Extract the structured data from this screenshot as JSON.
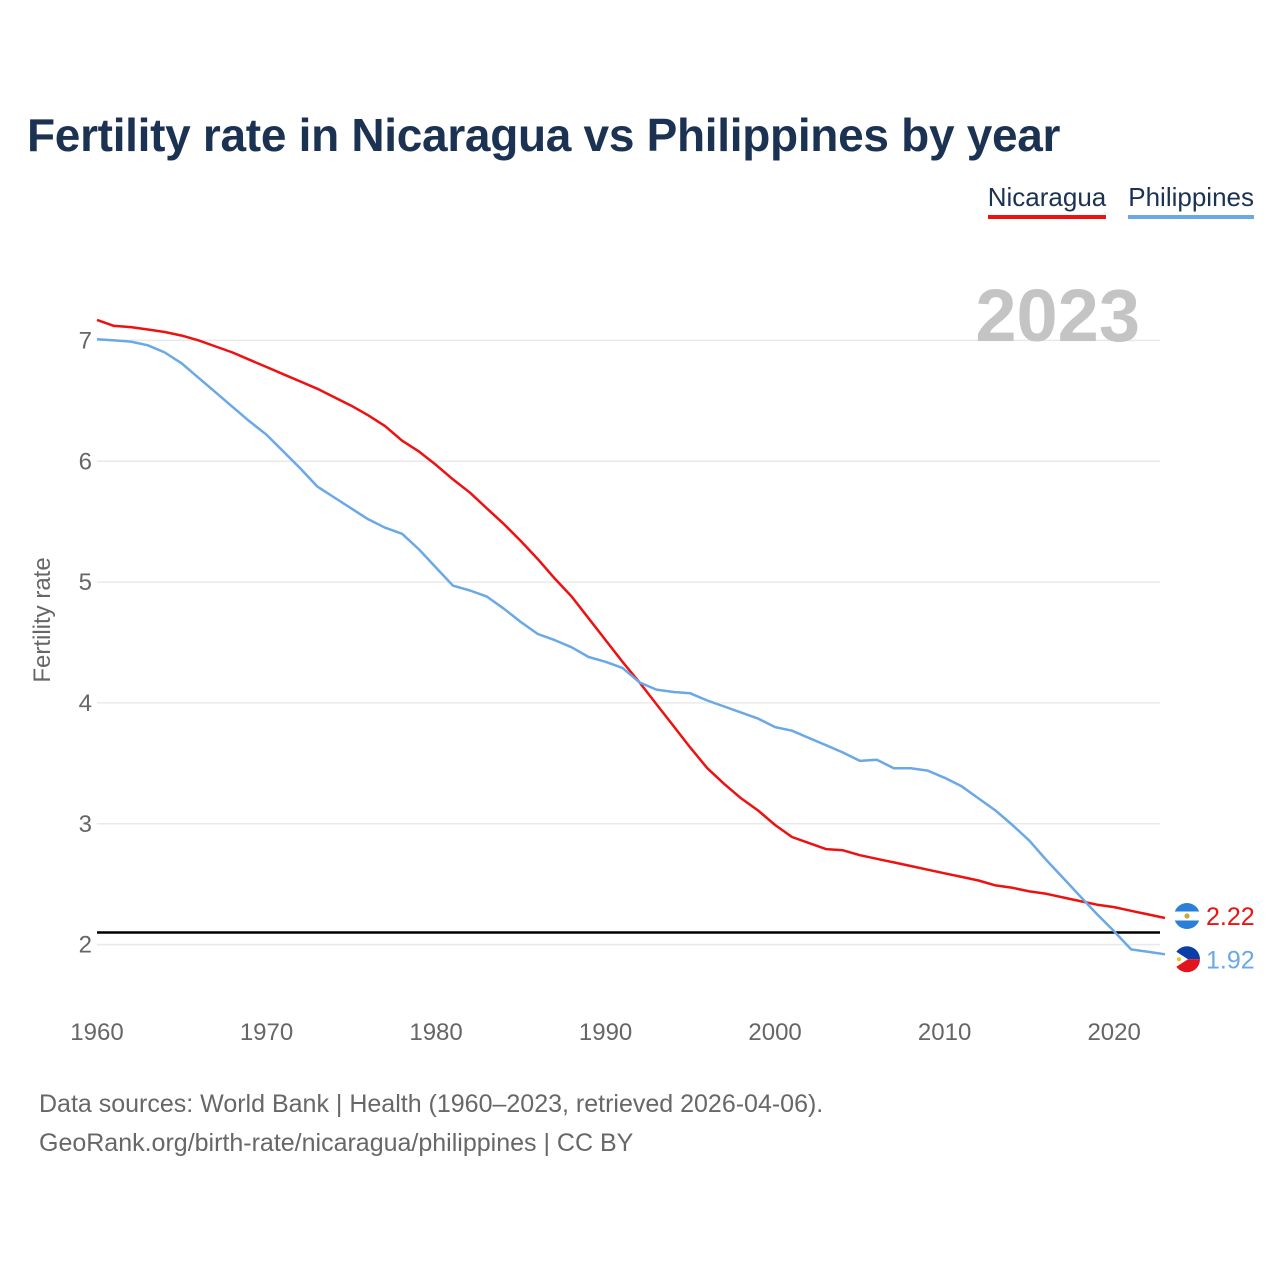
{
  "colors": {
    "nicaragua": "#ee1111",
    "philippines": "#6aa8e6",
    "title": "#1b3253",
    "axis_text": "#666666",
    "year_watermark": "#c4c4c4",
    "replacement_line": "#000000"
  },
  "legend": {
    "nicaragua": "Nicaragua",
    "philippines": "Philippines"
  },
  "footer": {
    "line1": "Data sources: World Bank | Health (1960–2023, retrieved 2026-04-06).",
    "line2": "GeoRank.org/birth-rate/nicaragua/philippines | CC BY"
  },
  "chart_data": {
    "type": "line",
    "title": "Fertility rate in Nicaragua vs Philippines by year",
    "xlabel": "",
    "ylabel": "Fertility rate",
    "year_label": "2023",
    "xlim": [
      1960,
      2023
    ],
    "ylim": [
      1.5,
      7.5
    ],
    "x_ticks": [
      1960,
      1970,
      1980,
      1990,
      2000,
      2010,
      2020
    ],
    "y_ticks": [
      2,
      3,
      4,
      5,
      6,
      7
    ],
    "reference_line": 2.1,
    "x": [
      1960,
      1961,
      1962,
      1963,
      1964,
      1965,
      1966,
      1967,
      1968,
      1969,
      1970,
      1971,
      1972,
      1973,
      1974,
      1975,
      1976,
      1977,
      1978,
      1979,
      1980,
      1981,
      1982,
      1983,
      1984,
      1985,
      1986,
      1987,
      1988,
      1989,
      1990,
      1991,
      1992,
      1993,
      1994,
      1995,
      1996,
      1997,
      1998,
      1999,
      2000,
      2001,
      2002,
      2003,
      2004,
      2005,
      2006,
      2007,
      2008,
      2009,
      2010,
      2011,
      2012,
      2013,
      2014,
      2015,
      2016,
      2017,
      2018,
      2019,
      2020,
      2021,
      2022,
      2023
    ],
    "series": [
      {
        "name": "Nicaragua",
        "end_label": "2.22",
        "values": [
          7.17,
          7.12,
          7.11,
          7.09,
          7.07,
          7.04,
          7.0,
          6.95,
          6.9,
          6.84,
          6.78,
          6.72,
          6.66,
          6.6,
          6.53,
          6.46,
          6.38,
          6.29,
          6.17,
          6.08,
          5.97,
          5.85,
          5.74,
          5.61,
          5.48,
          5.34,
          5.19,
          5.03,
          4.88,
          4.7,
          4.52,
          4.34,
          4.17,
          3.99,
          3.81,
          3.63,
          3.46,
          3.33,
          3.21,
          3.11,
          2.99,
          2.89,
          2.84,
          2.79,
          2.78,
          2.74,
          2.71,
          2.68,
          2.65,
          2.62,
          2.59,
          2.56,
          2.53,
          2.49,
          2.47,
          2.44,
          2.42,
          2.39,
          2.36,
          2.33,
          2.31,
          2.28,
          2.25,
          2.22
        ]
      },
      {
        "name": "Philippines",
        "end_label": "1.92",
        "values": [
          7.01,
          7.0,
          6.99,
          6.96,
          6.9,
          6.81,
          6.69,
          6.57,
          6.45,
          6.33,
          6.22,
          6.08,
          5.94,
          5.79,
          5.7,
          5.61,
          5.52,
          5.45,
          5.4,
          5.27,
          5.12,
          4.97,
          4.93,
          4.88,
          4.78,
          4.67,
          4.57,
          4.52,
          4.46,
          4.38,
          4.34,
          4.29,
          4.17,
          4.11,
          4.09,
          4.08,
          4.02,
          3.97,
          3.92,
          3.87,
          3.8,
          3.77,
          3.71,
          3.65,
          3.59,
          3.52,
          3.53,
          3.46,
          3.46,
          3.44,
          3.38,
          3.31,
          3.21,
          3.11,
          2.99,
          2.86,
          2.7,
          2.55,
          2.4,
          2.25,
          2.11,
          1.96,
          1.94,
          1.92
        ]
      }
    ]
  }
}
